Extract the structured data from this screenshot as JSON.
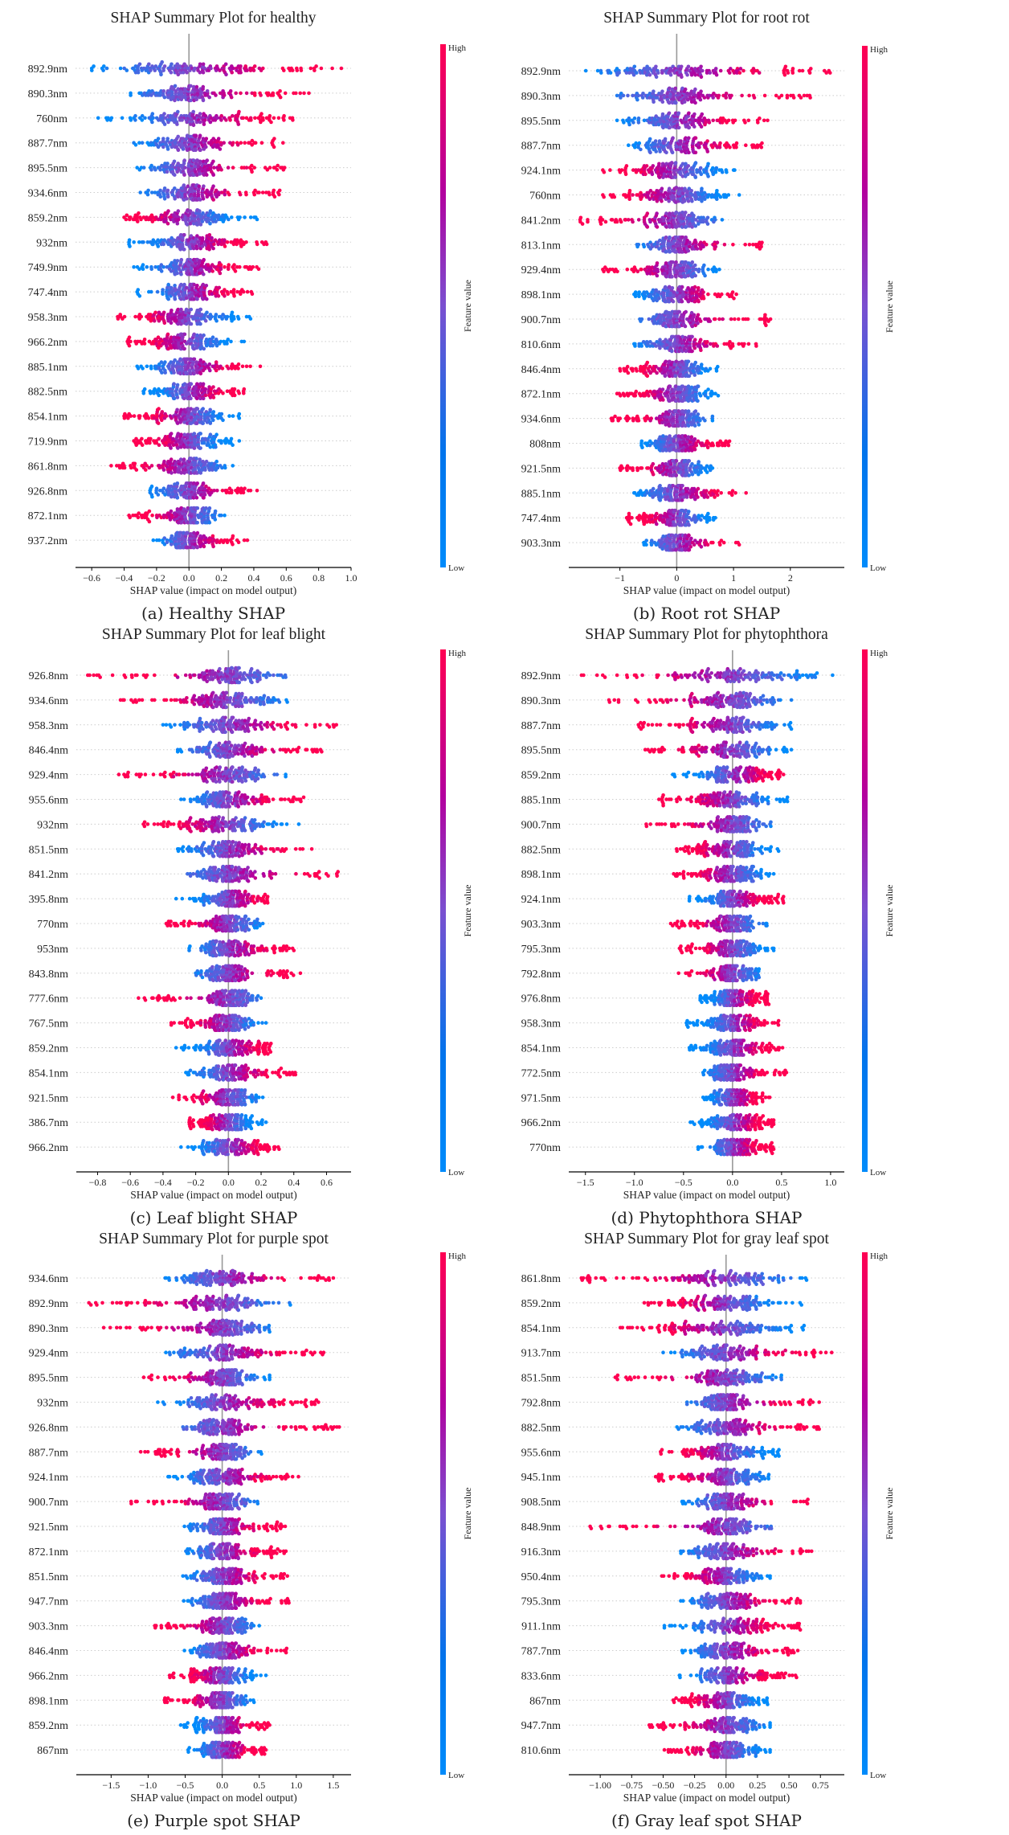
{
  "figure": {
    "colors": {
      "high": "#ff0052",
      "mid": "#b3009e",
      "low": "#008bfb",
      "zero_line": "#999999",
      "grid": "#cccccc",
      "axis": "#000000"
    },
    "colorbar": {
      "high_label": "High",
      "low_label": "Low",
      "title": "Feature value"
    }
  },
  "chart_data": [
    {
      "type": "scatter",
      "subtype": "shap-beeswarm",
      "panel": "a",
      "title": "SHAP Summary Plot for  healthy",
      "caption": "(a) Healthy SHAP",
      "xlabel": "SHAP value (impact on model output)",
      "xlim": [
        -0.7,
        1.0
      ],
      "xticks": [
        -0.6,
        -0.4,
        -0.2,
        0.0,
        0.2,
        0.4,
        0.6,
        0.8,
        1.0
      ],
      "xtick_labels": [
        "−0.6",
        "−0.4",
        "−0.2",
        "0.0",
        "0.2",
        "0.4",
        "0.6",
        "0.8",
        "1.0"
      ],
      "features": [
        {
          "name": "892.9nm",
          "min": -0.6,
          "max": 0.94,
          "high_side": "right"
        },
        {
          "name": "890.3nm",
          "min": -0.36,
          "max": 0.74,
          "high_side": "right"
        },
        {
          "name": "760nm",
          "min": -0.56,
          "max": 0.64,
          "high_side": "right"
        },
        {
          "name": "887.7nm",
          "min": -0.34,
          "max": 0.58,
          "high_side": "right"
        },
        {
          "name": "895.5nm",
          "min": -0.32,
          "max": 0.59,
          "high_side": "right"
        },
        {
          "name": "934.6nm",
          "min": -0.3,
          "max": 0.56,
          "high_side": "right"
        },
        {
          "name": "859.2nm",
          "min": -0.4,
          "max": 0.42,
          "high_side": "left"
        },
        {
          "name": "932nm",
          "min": -0.37,
          "max": 0.48,
          "high_side": "right"
        },
        {
          "name": "749.9nm",
          "min": -0.34,
          "max": 0.43,
          "high_side": "right"
        },
        {
          "name": "747.4nm",
          "min": -0.32,
          "max": 0.39,
          "high_side": "right"
        },
        {
          "name": "958.3nm",
          "min": -0.44,
          "max": 0.38,
          "high_side": "left"
        },
        {
          "name": "966.2nm",
          "min": -0.38,
          "max": 0.34,
          "high_side": "left"
        },
        {
          "name": "885.1nm",
          "min": -0.32,
          "max": 0.44,
          "high_side": "right"
        },
        {
          "name": "882.5nm",
          "min": -0.28,
          "max": 0.34,
          "high_side": "right"
        },
        {
          "name": "854.1nm",
          "min": -0.4,
          "max": 0.31,
          "high_side": "left"
        },
        {
          "name": "719.9nm",
          "min": -0.34,
          "max": 0.31,
          "high_side": "left"
        },
        {
          "name": "861.8nm",
          "min": -0.48,
          "max": 0.27,
          "high_side": "left"
        },
        {
          "name": "926.8nm",
          "min": -0.24,
          "max": 0.42,
          "high_side": "right"
        },
        {
          "name": "872.1nm",
          "min": -0.37,
          "max": 0.22,
          "high_side": "left"
        },
        {
          "name": "937.2nm",
          "min": -0.22,
          "max": 0.36,
          "high_side": "right"
        }
      ]
    },
    {
      "type": "scatter",
      "subtype": "shap-beeswarm",
      "panel": "b",
      "title": "SHAP Summary Plot for  root rot",
      "caption": "(b) Root rot SHAP",
      "xlabel": "SHAP value (impact on model output)",
      "xlim": [
        -1.9,
        2.95
      ],
      "xticks": [
        -1,
        0,
        1,
        2
      ],
      "xtick_labels": [
        "−1",
        "0",
        "1",
        "2"
      ],
      "features": [
        {
          "name": "892.9nm",
          "min": -1.6,
          "max": 2.7,
          "high_side": "right"
        },
        {
          "name": "890.3nm",
          "min": -1.05,
          "max": 2.35,
          "high_side": "right"
        },
        {
          "name": "895.5nm",
          "min": -1.05,
          "max": 1.6,
          "high_side": "right"
        },
        {
          "name": "887.7nm",
          "min": -0.85,
          "max": 1.5,
          "high_side": "right"
        },
        {
          "name": "924.1nm",
          "min": -1.3,
          "max": 1.02,
          "high_side": "left"
        },
        {
          "name": "760nm",
          "min": -1.3,
          "max": 1.1,
          "high_side": "left"
        },
        {
          "name": "841.2nm",
          "min": -1.7,
          "max": 0.8,
          "high_side": "left"
        },
        {
          "name": "813.1nm",
          "min": -0.7,
          "max": 1.5,
          "high_side": "right"
        },
        {
          "name": "929.4nm",
          "min": -1.3,
          "max": 0.75,
          "high_side": "left"
        },
        {
          "name": "898.1nm",
          "min": -0.75,
          "max": 1.05,
          "high_side": "right"
        },
        {
          "name": "900.7nm",
          "min": -0.65,
          "max": 1.65,
          "high_side": "right"
        },
        {
          "name": "810.6nm",
          "min": -0.75,
          "max": 1.4,
          "high_side": "right"
        },
        {
          "name": "846.4nm",
          "min": -1.0,
          "max": 0.72,
          "high_side": "left"
        },
        {
          "name": "872.1nm",
          "min": -1.05,
          "max": 0.73,
          "high_side": "left"
        },
        {
          "name": "934.6nm",
          "min": -1.15,
          "max": 0.63,
          "high_side": "left"
        },
        {
          "name": "808nm",
          "min": -0.62,
          "max": 0.93,
          "high_side": "right"
        },
        {
          "name": "921.5nm",
          "min": -1.0,
          "max": 0.63,
          "high_side": "left"
        },
        {
          "name": "885.1nm",
          "min": -0.75,
          "max": 1.22,
          "high_side": "right"
        },
        {
          "name": "747.4nm",
          "min": -0.88,
          "max": 0.68,
          "high_side": "left"
        },
        {
          "name": "903.3nm",
          "min": -0.58,
          "max": 1.1,
          "high_side": "right"
        }
      ]
    },
    {
      "type": "scatter",
      "subtype": "shap-beeswarm",
      "panel": "c",
      "title": "SHAP Summary Plot for  leaf blight",
      "caption": "(c) Leaf blight SHAP",
      "xlabel": "SHAP value (impact on model output)",
      "xlim": [
        -0.93,
        0.75
      ],
      "xticks": [
        -0.8,
        -0.6,
        -0.4,
        -0.2,
        0.0,
        0.2,
        0.4,
        0.6
      ],
      "xtick_labels": [
        "−0.8",
        "−0.6",
        "−0.4",
        "−0.2",
        "0.0",
        "0.2",
        "0.4",
        "0.6"
      ],
      "features": [
        {
          "name": "926.8nm",
          "min": -0.86,
          "max": 0.35,
          "high_side": "left"
        },
        {
          "name": "934.6nm",
          "min": -0.66,
          "max": 0.36,
          "high_side": "left"
        },
        {
          "name": "958.3nm",
          "min": -0.4,
          "max": 0.66,
          "high_side": "right"
        },
        {
          "name": "846.4nm",
          "min": -0.31,
          "max": 0.57,
          "high_side": "right"
        },
        {
          "name": "929.4nm",
          "min": -0.67,
          "max": 0.35,
          "high_side": "left"
        },
        {
          "name": "955.6nm",
          "min": -0.29,
          "max": 0.46,
          "high_side": "right"
        },
        {
          "name": "932nm",
          "min": -0.52,
          "max": 0.43,
          "high_side": "left"
        },
        {
          "name": "851.5nm",
          "min": -0.31,
          "max": 0.51,
          "high_side": "right"
        },
        {
          "name": "841.2nm",
          "min": -0.25,
          "max": 0.67,
          "high_side": "right"
        },
        {
          "name": "395.8nm",
          "min": -0.32,
          "max": 0.24,
          "high_side": "right"
        },
        {
          "name": "770nm",
          "min": -0.38,
          "max": 0.21,
          "high_side": "left"
        },
        {
          "name": "953nm",
          "min": -0.24,
          "max": 0.4,
          "high_side": "right"
        },
        {
          "name": "843.8nm",
          "min": -0.2,
          "max": 0.44,
          "high_side": "right"
        },
        {
          "name": "777.6nm",
          "min": -0.55,
          "max": 0.2,
          "high_side": "left"
        },
        {
          "name": "767.5nm",
          "min": -0.35,
          "max": 0.23,
          "high_side": "left"
        },
        {
          "name": "859.2nm",
          "min": -0.32,
          "max": 0.26,
          "high_side": "right"
        },
        {
          "name": "854.1nm",
          "min": -0.26,
          "max": 0.41,
          "high_side": "right"
        },
        {
          "name": "921.5nm",
          "min": -0.34,
          "max": 0.21,
          "high_side": "left"
        },
        {
          "name": "386.7nm",
          "min": -0.24,
          "max": 0.23,
          "high_side": "left"
        },
        {
          "name": "966.2nm",
          "min": -0.29,
          "max": 0.31,
          "high_side": "right"
        }
      ]
    },
    {
      "type": "scatter",
      "subtype": "shap-beeswarm",
      "panel": "d",
      "title": "SHAP Summary Plot for  phytophthora",
      "caption": "(d) Phytophthora SHAP",
      "xlabel": "SHAP value (impact on model output)",
      "xlim": [
        -1.67,
        1.14
      ],
      "xticks": [
        -1.5,
        -1.0,
        -0.5,
        0.0,
        0.5,
        1.0
      ],
      "xtick_labels": [
        "−1.5",
        "−1.0",
        "−0.5",
        "0.0",
        "0.5",
        "1.0"
      ],
      "features": [
        {
          "name": "892.9nm",
          "min": -1.54,
          "max": 1.02,
          "high_side": "left"
        },
        {
          "name": "890.3nm",
          "min": -1.26,
          "max": 0.6,
          "high_side": "left"
        },
        {
          "name": "887.7nm",
          "min": -0.96,
          "max": 0.6,
          "high_side": "left"
        },
        {
          "name": "895.5nm",
          "min": -0.89,
          "max": 0.6,
          "high_side": "left"
        },
        {
          "name": "859.2nm",
          "min": -0.61,
          "max": 0.52,
          "high_side": "right"
        },
        {
          "name": "885.1nm",
          "min": -0.75,
          "max": 0.56,
          "high_side": "left"
        },
        {
          "name": "900.7nm",
          "min": -0.88,
          "max": 0.39,
          "high_side": "left"
        },
        {
          "name": "882.5nm",
          "min": -0.57,
          "max": 0.47,
          "high_side": "left"
        },
        {
          "name": "898.1nm",
          "min": -0.6,
          "max": 0.42,
          "high_side": "left"
        },
        {
          "name": "924.1nm",
          "min": -0.44,
          "max": 0.52,
          "high_side": "right"
        },
        {
          "name": "903.3nm",
          "min": -0.63,
          "max": 0.35,
          "high_side": "left"
        },
        {
          "name": "795.3nm",
          "min": -0.54,
          "max": 0.42,
          "high_side": "left"
        },
        {
          "name": "792.8nm",
          "min": -0.55,
          "max": 0.27,
          "high_side": "left"
        },
        {
          "name": "976.8nm",
          "min": -0.33,
          "max": 0.37,
          "high_side": "right"
        },
        {
          "name": "958.3nm",
          "min": -0.47,
          "max": 0.47,
          "high_side": "right"
        },
        {
          "name": "854.1nm",
          "min": -0.44,
          "max": 0.51,
          "high_side": "right"
        },
        {
          "name": "772.5nm",
          "min": -0.3,
          "max": 0.55,
          "high_side": "right"
        },
        {
          "name": "971.5nm",
          "min": -0.3,
          "max": 0.38,
          "high_side": "right"
        },
        {
          "name": "966.2nm",
          "min": -0.43,
          "max": 0.42,
          "high_side": "right"
        },
        {
          "name": "770nm",
          "min": -0.35,
          "max": 0.42,
          "high_side": "right"
        }
      ]
    },
    {
      "type": "scatter",
      "subtype": "shap-beeswarm",
      "panel": "e",
      "title": "SHAP Summary Plot for  purple spot",
      "caption": "(e) Purple spot SHAP",
      "xlabel": "SHAP value (impact on model output)",
      "xlim": [
        -1.97,
        1.74
      ],
      "xticks": [
        -1.5,
        -1.0,
        -0.5,
        0.0,
        0.5,
        1.0,
        1.5
      ],
      "xtick_labels": [
        "−1.5",
        "−1.0",
        "−0.5",
        "0.0",
        "0.5",
        "1.0",
        "1.5"
      ],
      "features": [
        {
          "name": "934.6nm",
          "min": -0.77,
          "max": 1.5,
          "high_side": "right"
        },
        {
          "name": "892.9nm",
          "min": -1.8,
          "max": 0.92,
          "high_side": "left"
        },
        {
          "name": "890.3nm",
          "min": -1.6,
          "max": 0.64,
          "high_side": "left"
        },
        {
          "name": "929.4nm",
          "min": -0.76,
          "max": 1.37,
          "high_side": "right"
        },
        {
          "name": "895.5nm",
          "min": -1.06,
          "max": 0.64,
          "high_side": "left"
        },
        {
          "name": "932nm",
          "min": -0.87,
          "max": 1.3,
          "high_side": "right"
        },
        {
          "name": "926.8nm",
          "min": -0.53,
          "max": 1.58,
          "high_side": "right"
        },
        {
          "name": "887.7nm",
          "min": -1.1,
          "max": 0.53,
          "high_side": "left"
        },
        {
          "name": "924.1nm",
          "min": -0.73,
          "max": 1.03,
          "high_side": "right"
        },
        {
          "name": "900.7nm",
          "min": -1.23,
          "max": 0.48,
          "high_side": "left"
        },
        {
          "name": "921.5nm",
          "min": -0.51,
          "max": 0.85,
          "high_side": "right"
        },
        {
          "name": "872.1nm",
          "min": -0.49,
          "max": 0.86,
          "high_side": "right"
        },
        {
          "name": "851.5nm",
          "min": -0.53,
          "max": 0.88,
          "high_side": "right"
        },
        {
          "name": "947.7nm",
          "min": -0.52,
          "max": 0.9,
          "high_side": "right"
        },
        {
          "name": "903.3nm",
          "min": -0.91,
          "max": 0.5,
          "high_side": "left"
        },
        {
          "name": "846.4nm",
          "min": -0.51,
          "max": 0.87,
          "high_side": "right"
        },
        {
          "name": "966.2nm",
          "min": -0.71,
          "max": 0.59,
          "high_side": "left"
        },
        {
          "name": "898.1nm",
          "min": -0.78,
          "max": 0.43,
          "high_side": "left"
        },
        {
          "name": "859.2nm",
          "min": -0.56,
          "max": 0.64,
          "high_side": "right"
        },
        {
          "name": "867nm",
          "min": -0.46,
          "max": 0.59,
          "high_side": "right"
        }
      ]
    },
    {
      "type": "scatter",
      "subtype": "shap-beeswarm",
      "panel": "f",
      "title": "SHAP Summary Plot for  gray leaf spot",
      "caption": "(f) Gray leaf spot SHAP",
      "xlabel": "SHAP value (impact on model output)",
      "xlim": [
        -1.25,
        0.94
      ],
      "xticks": [
        -1.0,
        -0.75,
        -0.5,
        -0.25,
        0.0,
        0.25,
        0.5,
        0.75
      ],
      "xtick_labels": [
        "−1.00",
        "−0.75",
        "−0.50",
        "−0.25",
        "0.00",
        "0.25",
        "0.50",
        "0.75"
      ],
      "features": [
        {
          "name": "861.8nm",
          "min": -1.15,
          "max": 0.64,
          "high_side": "left"
        },
        {
          "name": "859.2nm",
          "min": -0.65,
          "max": 0.6,
          "high_side": "left"
        },
        {
          "name": "854.1nm",
          "min": -0.84,
          "max": 0.62,
          "high_side": "left"
        },
        {
          "name": "913.7nm",
          "min": -0.5,
          "max": 0.84,
          "high_side": "right"
        },
        {
          "name": "851.5nm",
          "min": -0.88,
          "max": 0.44,
          "high_side": "left"
        },
        {
          "name": "792.8nm",
          "min": -0.31,
          "max": 0.74,
          "high_side": "right"
        },
        {
          "name": "882.5nm",
          "min": -0.39,
          "max": 0.74,
          "high_side": "right"
        },
        {
          "name": "955.6nm",
          "min": -0.52,
          "max": 0.42,
          "high_side": "left"
        },
        {
          "name": "945.1nm",
          "min": -0.56,
          "max": 0.34,
          "high_side": "left"
        },
        {
          "name": "908.5nm",
          "min": -0.35,
          "max": 0.65,
          "high_side": "right"
        },
        {
          "name": "848.9nm",
          "min": -1.08,
          "max": 0.36,
          "high_side": "left"
        },
        {
          "name": "916.3nm",
          "min": -0.36,
          "max": 0.68,
          "high_side": "right"
        },
        {
          "name": "950.4nm",
          "min": -0.51,
          "max": 0.35,
          "high_side": "left"
        },
        {
          "name": "795.3nm",
          "min": -0.36,
          "max": 0.59,
          "high_side": "right"
        },
        {
          "name": "911.1nm",
          "min": -0.49,
          "max": 0.59,
          "high_side": "right"
        },
        {
          "name": "787.7nm",
          "min": -0.35,
          "max": 0.57,
          "high_side": "right"
        },
        {
          "name": "833.6nm",
          "min": -0.37,
          "max": 0.56,
          "high_side": "right"
        },
        {
          "name": "867nm",
          "min": -0.42,
          "max": 0.33,
          "high_side": "left"
        },
        {
          "name": "947.7nm",
          "min": -0.61,
          "max": 0.35,
          "high_side": "left"
        },
        {
          "name": "810.6nm",
          "min": -0.49,
          "max": 0.35,
          "high_side": "left"
        }
      ]
    }
  ]
}
